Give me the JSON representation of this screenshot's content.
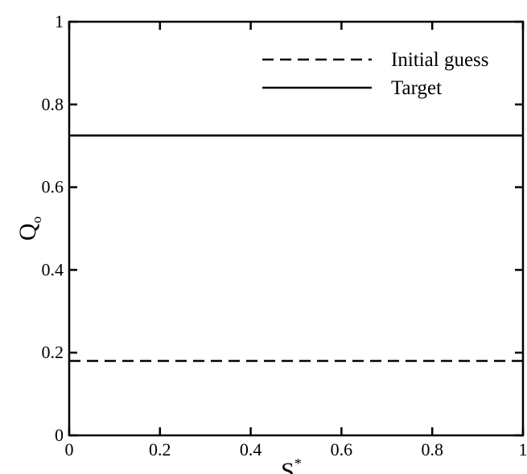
{
  "chart_data": {
    "type": "line",
    "title": "",
    "xlabel": "S",
    "xlabel_superscript": "*",
    "ylabel": "Q",
    "ylabel_subscript": "o",
    "xlim": [
      0,
      1
    ],
    "ylim": [
      0,
      1
    ],
    "x_ticks": [
      0,
      0.2,
      0.4,
      0.6,
      0.8,
      1
    ],
    "x_tick_labels": [
      "0",
      "0.2",
      "0.4",
      "0.6",
      "0.8",
      "1"
    ],
    "y_ticks": [
      0,
      0.2,
      0.4,
      0.6,
      0.8,
      1
    ],
    "y_tick_labels": [
      "0",
      "0.2",
      "0.4",
      "0.6",
      "0.8",
      "1"
    ],
    "grid": false,
    "legend_position": "top-right",
    "series": [
      {
        "name": "Initial guess",
        "style": "dashed",
        "color": "#000000",
        "x": [
          0,
          1
        ],
        "y": [
          0.18,
          0.18
        ]
      },
      {
        "name": "Target",
        "style": "solid",
        "color": "#000000",
        "x": [
          0,
          1
        ],
        "y": [
          0.725,
          0.725
        ]
      }
    ]
  }
}
